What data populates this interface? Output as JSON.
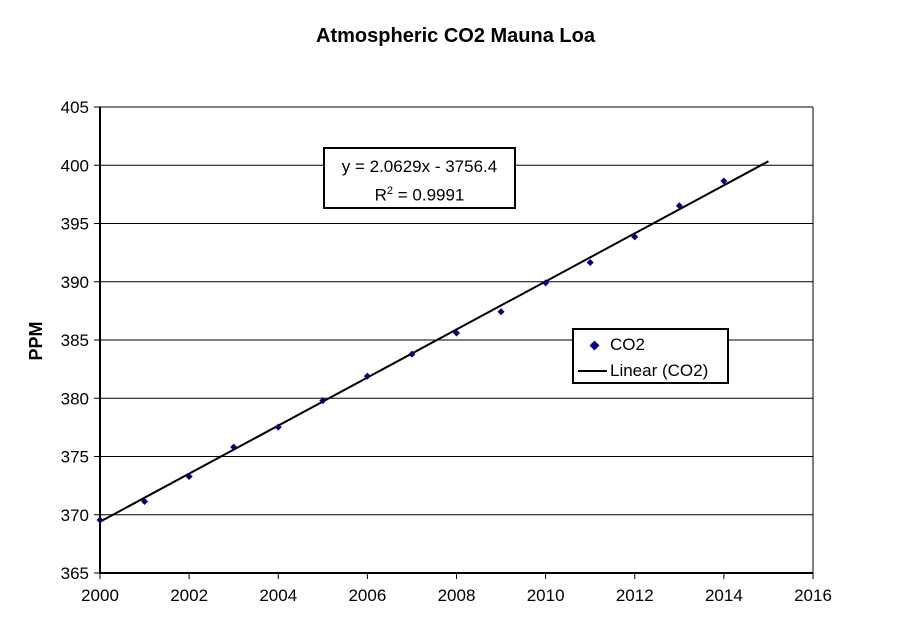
{
  "chart_data": {
    "type": "scatter",
    "title": "Atmospheric CO2 Mauna Loa",
    "xlabel": "",
    "ylabel": "PPM",
    "xlim": [
      2000,
      2016
    ],
    "ylim": [
      365,
      405
    ],
    "x_ticks": [
      2000,
      2002,
      2004,
      2006,
      2008,
      2010,
      2012,
      2014,
      2016
    ],
    "y_ticks": [
      365,
      370,
      375,
      380,
      385,
      390,
      395,
      400,
      405
    ],
    "grid": "horizontal-only",
    "legend_position": "inside-right",
    "background_color": "#ffffff",
    "axis_color": "#000000",
    "series": [
      {
        "name": "CO2",
        "marker": "diamond",
        "color": "#000080",
        "x": [
          2000,
          2001,
          2002,
          2003,
          2004,
          2005,
          2006,
          2007,
          2008,
          2009,
          2010,
          2011,
          2012,
          2013,
          2014
        ],
        "y": [
          369.55,
          371.14,
          373.28,
          375.8,
          377.52,
          379.8,
          381.9,
          383.79,
          385.6,
          387.43,
          389.9,
          391.65,
          393.85,
          396.52,
          398.65
        ]
      }
    ],
    "trendline": {
      "name": "Linear (CO2)",
      "color": "#000000",
      "slope": 2.0629,
      "intercept": -3756.4,
      "x_start": 2000,
      "x_end": 2015
    },
    "equation": {
      "line1": "y = 2.0629x - 3756.4",
      "r2_base": "R",
      "r2_exp": "2",
      "r2_rest": " = 0.9991"
    },
    "legend": {
      "series1": "CO2",
      "series2": "Linear (CO2)"
    }
  }
}
